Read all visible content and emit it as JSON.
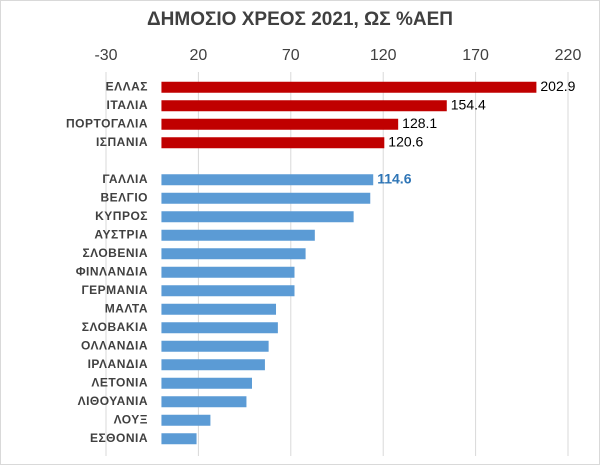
{
  "chart_data": {
    "type": "hbar",
    "title": "ΔΗΜΟΣΙΟ ΧΡΕΟΣ 2021, ΩΣ %ΑΕΠ",
    "categories": [
      "ΕΛΛΑΣ",
      "ΙΤΑΛΙΑ",
      "ΠΟΡΤΟΓΑΛΙΑ",
      "ΙΣΠΑΝΙΑ",
      null,
      "ΓΑΛΛΙΑ",
      "ΒΕΛΓΙΟ",
      "ΚΥΠΡΟΣ",
      "ΑΥΣΤΡΙΑ",
      "ΣΛΟΒΕΝΙΑ",
      "ΦΙΝΛΑΝΔΙΑ",
      "ΓΕΡΜΑΝΙΑ",
      "ΜΑΛΤΑ",
      "ΣΛΟΒΑΚΙΑ",
      "ΟΛΛΑΝΔΙΑ",
      "ΙΡΛΑΝΔΙΑ",
      "ΛΕΤΟΝΙΑ",
      "ΛΙΘΟΥΑΝΙΑ",
      "ΛΟΥΞ",
      "ΕΣΘΟΝΙΑ"
    ],
    "series": [
      {
        "color": "#c00000",
        "values": [
          202.9,
          154.4,
          128.1,
          120.6,
          null,
          null,
          null,
          null,
          null,
          null,
          null,
          null,
          null,
          null,
          null,
          null,
          null,
          null,
          null,
          null
        ],
        "value_labels": [
          "202.9",
          "154.4",
          "128.1",
          "120.6",
          null,
          null,
          null,
          null,
          null,
          null,
          null,
          null,
          null,
          null,
          null,
          null,
          null,
          null,
          null,
          null
        ]
      },
      {
        "color": "#5b9bd5",
        "values": [
          null,
          null,
          null,
          null,
          null,
          114.6,
          113,
          104,
          83,
          78,
          72,
          72,
          62,
          63,
          58,
          56,
          49,
          46,
          26.5,
          19
        ],
        "value_labels": [
          null,
          null,
          null,
          null,
          null,
          "114.6",
          null,
          null,
          null,
          null,
          null,
          null,
          null,
          null,
          null,
          null,
          null,
          null,
          null,
          null
        ]
      }
    ],
    "xlim": [
      -30,
      220
    ],
    "xticks": [
      -30,
      20,
      70,
      120,
      170,
      220
    ],
    "grid": true
  }
}
